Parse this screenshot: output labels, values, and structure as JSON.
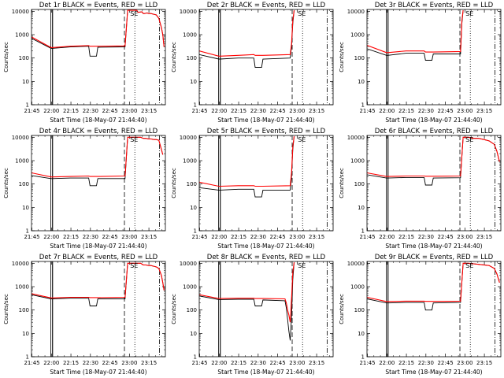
{
  "chart_data": [
    {
      "type": "line",
      "title": "Det 1r BLACK = Events, RED = LLD",
      "xlabel": "Start Time (18-May-07 21:44:40)",
      "ylabel": "Counts/sec",
      "x_ticks": [
        "21:45",
        "22:00",
        "22:15",
        "22:30",
        "22:45",
        "23:00",
        "23:15"
      ],
      "x_range_min": [
        0,
        103
      ],
      "y_ticks": [
        "1",
        "10",
        "100",
        "1000",
        "10000"
      ],
      "yscale": "log",
      "ylim": [
        1,
        12000
      ],
      "annotations": [
        "SE"
      ],
      "series": [
        {
          "name": "Events",
          "color": "#000000",
          "x": [
            0,
            15,
            16,
            30,
            44,
            45,
            50,
            51,
            72,
            74,
            78,
            81,
            82,
            85,
            86,
            87,
            89,
            90,
            92,
            94,
            96,
            98,
            100,
            101,
            102
          ],
          "y": [
            700,
            260,
            260,
            300,
            320,
            120,
            120,
            290,
            300,
            11000,
            11000,
            11000,
            9000,
            9500,
            8000,
            8000,
            8500,
            8000,
            8000,
            7500,
            7000,
            5000,
            2000,
            1000,
            300
          ]
        },
        {
          "name": "LLD",
          "color": "#ff0000",
          "x": [
            0,
            15,
            16,
            30,
            44,
            45,
            50,
            51,
            72,
            74,
            78,
            81,
            82,
            85,
            86,
            87,
            89,
            90,
            92,
            94,
            96,
            98,
            100,
            101,
            102
          ],
          "y": [
            800,
            280,
            280,
            320,
            340,
            320,
            320,
            320,
            330,
            11000,
            11000,
            11000,
            9000,
            9500,
            8000,
            8000,
            8500,
            8000,
            8000,
            7500,
            7000,
            5000,
            2000,
            1000,
            300
          ]
        }
      ]
    },
    {
      "type": "line",
      "title": "Det 2r BLACK = Events, RED = LLD",
      "xlabel": "Start Time (18-May-07 21:44:40)",
      "ylabel": "Counts/sec",
      "x_ticks": [
        "21:45",
        "22:00",
        "22:15",
        "22:30",
        "22:45",
        "23:00",
        "23:15"
      ],
      "x_range_min": [
        0,
        103
      ],
      "y_ticks": [
        "1",
        "10",
        "100",
        "1000",
        "10000"
      ],
      "yscale": "log",
      "ylim": [
        1,
        12000
      ],
      "annotations": [
        "SE"
      ],
      "series": [
        {
          "name": "Events",
          "color": "#000000",
          "x": [
            0,
            15,
            16,
            30,
            42,
            43,
            48,
            49,
            70,
            71,
            72,
            73
          ],
          "y": [
            140,
            90,
            90,
            100,
            100,
            40,
            40,
            90,
            100,
            300,
            3000,
            11000
          ]
        },
        {
          "name": "LLD",
          "color": "#ff0000",
          "x": [
            0,
            15,
            16,
            30,
            42,
            43,
            48,
            49,
            70,
            71,
            72,
            73
          ],
          "y": [
            200,
            120,
            120,
            130,
            140,
            130,
            130,
            130,
            140,
            400,
            4000,
            11000
          ]
        }
      ]
    },
    {
      "type": "line",
      "title": "Det 3r BLACK = Events, RED = LLD",
      "xlabel": "Start Time (18-May-07 21:44:40)",
      "ylabel": "Counts/sec",
      "x_ticks": [
        "21:45",
        "22:00",
        "22:15",
        "22:30",
        "22:45",
        "23:00",
        "23:15"
      ],
      "x_range_min": [
        0,
        103
      ],
      "y_ticks": [
        "1",
        "10",
        "100",
        "1000",
        "10000"
      ],
      "yscale": "log",
      "ylim": [
        1,
        12000
      ],
      "annotations": [
        "SE"
      ],
      "series": [
        {
          "name": "Events",
          "color": "#000000",
          "x": [
            0,
            15,
            16,
            30,
            44,
            45,
            50,
            51,
            72,
            73,
            74
          ],
          "y": [
            250,
            130,
            130,
            160,
            160,
            80,
            80,
            150,
            150,
            3000,
            11000
          ]
        },
        {
          "name": "LLD",
          "color": "#ff0000",
          "x": [
            0,
            15,
            16,
            30,
            44,
            45,
            50,
            51,
            72,
            73,
            74
          ],
          "y": [
            350,
            170,
            170,
            200,
            200,
            180,
            180,
            180,
            190,
            4000,
            11000
          ]
        }
      ]
    },
    {
      "type": "line",
      "title": "Det 4r BLACK = Events, RED = LLD",
      "xlabel": "Start Time (18-May-07 21:44:40)",
      "ylabel": "Counts/sec",
      "x_ticks": [
        "21:45",
        "22:00",
        "22:15",
        "22:30",
        "22:45",
        "23:00",
        "23:15"
      ],
      "x_range_min": [
        0,
        103
      ],
      "y_ticks": [
        "1",
        "10",
        "100",
        "1000",
        "10000"
      ],
      "yscale": "log",
      "ylim": [
        1,
        12000
      ],
      "annotations": [
        "SE"
      ],
      "series": [
        {
          "name": "Events",
          "color": "#000000",
          "x": [
            0,
            15,
            16,
            30,
            44,
            45,
            50,
            51,
            72,
            74,
            80,
            84,
            86,
            88,
            90,
            92,
            94,
            96,
            98,
            100,
            101
          ],
          "y": [
            230,
            170,
            170,
            180,
            180,
            85,
            85,
            170,
            170,
            10000,
            10000,
            10000,
            9000,
            9000,
            8500,
            8500,
            8000,
            8000,
            7500,
            3000,
            1800
          ]
        },
        {
          "name": "LLD",
          "color": "#ff0000",
          "x": [
            0,
            15,
            16,
            30,
            44,
            45,
            50,
            51,
            72,
            74,
            80,
            84,
            86,
            88,
            90,
            92,
            94,
            96,
            98,
            100,
            101
          ],
          "y": [
            300,
            200,
            200,
            210,
            220,
            210,
            210,
            210,
            220,
            10000,
            10000,
            10000,
            9000,
            9000,
            8500,
            8500,
            8000,
            8000,
            7500,
            3000,
            1800
          ]
        }
      ]
    },
    {
      "type": "line",
      "title": "Det 5r BLACK = Events, RED = LLD",
      "xlabel": "Start Time (18-May-07 21:44:40)",
      "ylabel": "Counts/sec",
      "x_ticks": [
        "21:45",
        "22:00",
        "22:15",
        "22:30",
        "22:45",
        "23:00",
        "23:15"
      ],
      "x_range_min": [
        0,
        103
      ],
      "y_ticks": [
        "1",
        "10",
        "100",
        "1000",
        "10000"
      ],
      "yscale": "log",
      "ylim": [
        1,
        12000
      ],
      "annotations": [
        "SE"
      ],
      "series": [
        {
          "name": "Events",
          "color": "#000000",
          "x": [
            0,
            15,
            16,
            30,
            42,
            43,
            48,
            49,
            70,
            71,
            72,
            73
          ],
          "y": [
            70,
            55,
            55,
            60,
            60,
            28,
            28,
            55,
            55,
            200,
            3000,
            11000
          ]
        },
        {
          "name": "LLD",
          "color": "#ff0000",
          "x": [
            0,
            15,
            16,
            30,
            42,
            43,
            48,
            49,
            70,
            71,
            72,
            73
          ],
          "y": [
            120,
            80,
            80,
            85,
            85,
            80,
            80,
            80,
            85,
            300,
            4000,
            11000
          ]
        }
      ]
    },
    {
      "type": "line",
      "title": "Det 6r BLACK = Events, RED = LLD",
      "xlabel": "Start Time (18-May-07 21:44:40)",
      "ylabel": "Counts/sec",
      "x_ticks": [
        "21:45",
        "22:00",
        "22:15",
        "22:30",
        "22:45",
        "23:00",
        "23:15"
      ],
      "x_range_min": [
        0,
        103
      ],
      "y_ticks": [
        "1",
        "10",
        "100",
        "1000",
        "10000"
      ],
      "yscale": "log",
      "ylim": [
        1,
        12000
      ],
      "annotations": [
        "SE"
      ],
      "series": [
        {
          "name": "Events",
          "color": "#000000",
          "x": [
            0,
            15,
            16,
            30,
            44,
            45,
            50,
            51,
            72,
            74,
            78,
            82,
            86,
            90,
            94,
            98,
            100,
            102
          ],
          "y": [
            250,
            180,
            180,
            190,
            190,
            90,
            90,
            180,
            185,
            10000,
            10000,
            9000,
            9000,
            8000,
            7000,
            5000,
            2500,
            900
          ]
        },
        {
          "name": "LLD",
          "color": "#ff0000",
          "x": [
            0,
            15,
            16,
            30,
            44,
            45,
            50,
            51,
            72,
            74,
            78,
            82,
            86,
            90,
            94,
            98,
            100,
            102
          ],
          "y": [
            300,
            210,
            210,
            220,
            220,
            215,
            215,
            215,
            220,
            10000,
            10000,
            9000,
            9000,
            8000,
            7000,
            5000,
            2500,
            900
          ]
        }
      ]
    },
    {
      "type": "line",
      "title": "Det 7r BLACK = Events, RED = LLD",
      "xlabel": "Start Time (18-May-07 21:44:40)",
      "ylabel": "Counts/sec",
      "x_ticks": [
        "21:45",
        "22:00",
        "22:15",
        "22:30",
        "22:45",
        "23:00",
        "23:15"
      ],
      "x_range_min": [
        0,
        103
      ],
      "y_ticks": [
        "1",
        "10",
        "100",
        "1000",
        "10000"
      ],
      "yscale": "log",
      "ylim": [
        1,
        12000
      ],
      "annotations": [
        "SE"
      ],
      "series": [
        {
          "name": "Events",
          "color": "#000000",
          "x": [
            0,
            15,
            16,
            30,
            44,
            45,
            50,
            51,
            72,
            74,
            78,
            84,
            86,
            88,
            90,
            92,
            94,
            96,
            98,
            100,
            101,
            102
          ],
          "y": [
            450,
            300,
            300,
            320,
            320,
            150,
            150,
            300,
            300,
            10000,
            10000,
            10000,
            8500,
            8500,
            8000,
            8000,
            7500,
            7000,
            6000,
            3000,
            1500,
            700
          ]
        },
        {
          "name": "LLD",
          "color": "#ff0000",
          "x": [
            0,
            15,
            16,
            30,
            44,
            45,
            50,
            51,
            72,
            74,
            78,
            84,
            86,
            88,
            90,
            92,
            94,
            96,
            98,
            100,
            101,
            102
          ],
          "y": [
            500,
            330,
            330,
            350,
            350,
            340,
            340,
            340,
            350,
            10000,
            10000,
            10000,
            8500,
            8500,
            8000,
            8000,
            7500,
            7000,
            6000,
            3000,
            1500,
            700
          ]
        }
      ]
    },
    {
      "type": "line",
      "title": "Det 8r BLACK = Events, RED = LLD",
      "xlabel": "Start Time (18-May-07 21:44:40)",
      "ylabel": "Counts/sec",
      "x_ticks": [
        "21:45",
        "22:00",
        "22:15",
        "22:30",
        "22:45",
        "23:00",
        "23:15"
      ],
      "x_range_min": [
        0,
        103
      ],
      "y_ticks": [
        "1",
        "10",
        "100",
        "1000",
        "10000"
      ],
      "yscale": "log",
      "ylim": [
        1,
        12000
      ],
      "annotations": [
        "SE"
      ],
      "series": [
        {
          "name": "Events",
          "color": "#000000",
          "x": [
            0,
            15,
            16,
            30,
            42,
            43,
            48,
            49,
            66,
            67,
            68,
            69,
            70,
            71,
            72,
            73
          ],
          "y": [
            400,
            280,
            280,
            290,
            290,
            150,
            150,
            270,
            250,
            120,
            40,
            12,
            5,
            50,
            2000,
            11000
          ]
        },
        {
          "name": "LLD",
          "color": "#ff0000",
          "x": [
            0,
            15,
            16,
            30,
            42,
            43,
            48,
            49,
            66,
            67,
            68,
            69,
            70,
            71,
            72,
            73
          ],
          "y": [
            450,
            310,
            310,
            320,
            320,
            310,
            310,
            310,
            300,
            200,
            100,
            60,
            30,
            300,
            4000,
            11000
          ]
        }
      ]
    },
    {
      "type": "line",
      "title": "Det 9r BLACK = Events, RED = LLD",
      "xlabel": "Start Time (18-May-07 21:44:40)",
      "ylabel": "Counts/sec",
      "x_ticks": [
        "21:45",
        "22:00",
        "22:15",
        "22:30",
        "22:45",
        "23:00",
        "23:15"
      ],
      "x_range_min": [
        0,
        103
      ],
      "y_ticks": [
        "1",
        "10",
        "100",
        "1000",
        "10000"
      ],
      "yscale": "log",
      "ylim": [
        1,
        12000
      ],
      "annotations": [
        "SE"
      ],
      "series": [
        {
          "name": "Events",
          "color": "#000000",
          "x": [
            0,
            15,
            16,
            30,
            44,
            45,
            50,
            51,
            72,
            74,
            78,
            82,
            86,
            90,
            94,
            98,
            100,
            102
          ],
          "y": [
            300,
            200,
            200,
            210,
            210,
            100,
            100,
            200,
            210,
            10000,
            10000,
            9500,
            9000,
            8500,
            8000,
            6000,
            3500,
            1500
          ]
        },
        {
          "name": "LLD",
          "color": "#ff0000",
          "x": [
            0,
            15,
            16,
            30,
            44,
            45,
            50,
            51,
            72,
            74,
            78,
            82,
            86,
            90,
            94,
            98,
            100,
            102
          ],
          "y": [
            350,
            230,
            230,
            240,
            240,
            235,
            235,
            235,
            240,
            10000,
            10000,
            9500,
            9000,
            8500,
            8000,
            6000,
            3500,
            1500
          ]
        }
      ]
    }
  ]
}
